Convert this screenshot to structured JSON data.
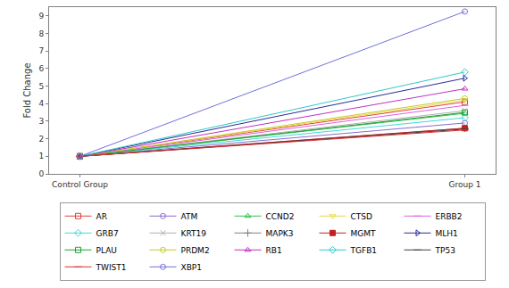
{
  "chart_data": {
    "type": "line",
    "y_label": "Fold Change",
    "categories": [
      "Control Group",
      "Group 1"
    ],
    "ylim": [
      0,
      9.5
    ],
    "yticks": [
      0,
      1,
      2,
      3,
      4,
      5,
      6,
      7,
      8,
      9
    ],
    "grid": false,
    "legend": "bottom",
    "series": [
      {
        "name": "AR",
        "color": "#e04040",
        "marker": "square-open",
        "values": [
          1,
          4.1
        ]
      },
      {
        "name": "ATM",
        "color": "#8a6ccf",
        "marker": "circle-open",
        "values": [
          1,
          2.9
        ]
      },
      {
        "name": "CCND2",
        "color": "#30c050",
        "marker": "triangle-up-open",
        "values": [
          1,
          3.45
        ]
      },
      {
        "name": "CTSD",
        "color": "#e8d840",
        "marker": "triangle-down-open",
        "values": [
          1,
          4.2
        ]
      },
      {
        "name": "ERBB2",
        "color": "#e060e0",
        "marker": "line-ew",
        "values": [
          1,
          3.9
        ]
      },
      {
        "name": "GRB7",
        "color": "#40d8d8",
        "marker": "diamond-open",
        "values": [
          1,
          3.2
        ]
      },
      {
        "name": "KRT19",
        "color": "#b0b0b0",
        "marker": "x-thin",
        "values": [
          1,
          3.6
        ]
      },
      {
        "name": "MAPK3",
        "color": "#808080",
        "marker": "cross-thin",
        "values": [
          1,
          2.6
        ]
      },
      {
        "name": "MGMT",
        "color": "#c02020",
        "marker": "square",
        "values": [
          1,
          2.6
        ]
      },
      {
        "name": "MLH1",
        "color": "#2a2a9a",
        "marker": "triangle-right-open",
        "values": [
          1,
          5.45
        ]
      },
      {
        "name": "PLAU",
        "color": "#20a030",
        "marker": "square-open",
        "values": [
          1,
          3.5
        ]
      },
      {
        "name": "PRDM2",
        "color": "#c8c830",
        "marker": "circle-open",
        "values": [
          1,
          4.3
        ]
      },
      {
        "name": "RB1",
        "color": "#c030c0",
        "marker": "triangle-up-open",
        "values": [
          1,
          4.85
        ]
      },
      {
        "name": "TGFB1",
        "color": "#30c8c8",
        "marker": "diamond-open",
        "values": [
          1,
          5.8
        ]
      },
      {
        "name": "TP53",
        "color": "#404040",
        "marker": "line-ew",
        "values": [
          1,
          2.55
        ]
      },
      {
        "name": "TWIST1",
        "color": "#e03030",
        "marker": "line-ew",
        "values": [
          1,
          2.5
        ]
      },
      {
        "name": "XBP1",
        "color": "#7070e0",
        "marker": "circle-open",
        "values": [
          1,
          9.25
        ]
      }
    ]
  }
}
